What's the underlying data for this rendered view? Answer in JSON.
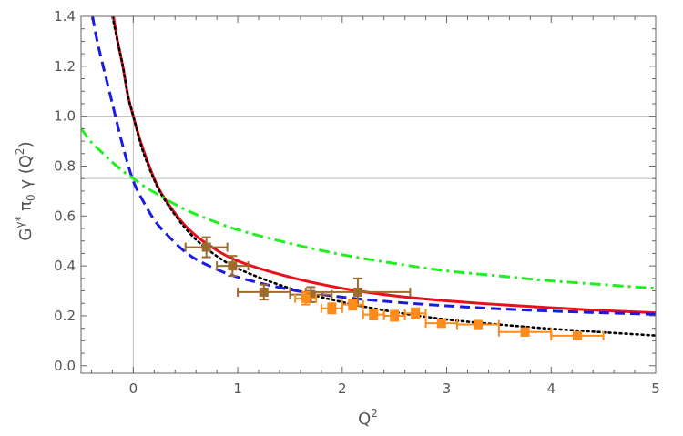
{
  "chart_data": {
    "type": "line",
    "title": "",
    "xlabel": {
      "base": "Q",
      "sup": "2"
    },
    "ylabel": {
      "g": "G",
      "gsup": "γ*",
      "pi": " π",
      "pisub": "0",
      "rest": " γ",
      "arg_open": " (Q",
      "arg_sup": "2",
      "arg_close": ")"
    },
    "xlim": [
      -0.5,
      5
    ],
    "ylim": [
      -0.03,
      1.4
    ],
    "xticks": [
      0,
      1,
      2,
      3,
      4,
      5
    ],
    "yticks": [
      0.0,
      0.2,
      0.4,
      0.6,
      0.8,
      1.0,
      1.2,
      1.4
    ],
    "ytick_labels": [
      "0.0",
      "0.2",
      "0.4",
      "0.6",
      "0.8",
      "1.0",
      "1.2",
      "1.4"
    ],
    "reference_lines": {
      "x": [
        0
      ],
      "y": [
        0.75,
        1.0
      ]
    },
    "grid": false,
    "frame": true,
    "curves": [
      {
        "style": "solid",
        "color": "#e8101a",
        "x": [
          -0.19,
          -0.15,
          -0.1,
          -0.05,
          0,
          0.05,
          0.1,
          0.2,
          0.3,
          0.5,
          0.7,
          1.0,
          1.5,
          2.0,
          2.5,
          3.0,
          3.5,
          4.0,
          4.5,
          5.0
        ],
        "y": [
          1.4,
          1.3,
          1.2,
          1.08,
          1.0,
          0.925,
          0.86,
          0.75,
          0.67,
          0.56,
          0.49,
          0.42,
          0.355,
          0.31,
          0.28,
          0.26,
          0.245,
          0.232,
          0.221,
          0.212
        ]
      },
      {
        "style": "dotted",
        "color": "#000000",
        "x": [
          -0.2,
          -0.15,
          -0.1,
          -0.05,
          0,
          0.05,
          0.1,
          0.2,
          0.3,
          0.5,
          0.7,
          1.0,
          1.5,
          2.0,
          2.5,
          3.0,
          3.5,
          4.0,
          4.5,
          5.0
        ],
        "y": [
          1.4,
          1.3,
          1.2,
          1.08,
          1.0,
          0.92,
          0.85,
          0.745,
          0.665,
          0.55,
          0.47,
          0.39,
          0.31,
          0.255,
          0.215,
          0.185,
          0.165,
          0.148,
          0.134,
          0.121
        ]
      },
      {
        "style": "dashed",
        "color": "#1a1ae0",
        "x": [
          -0.39,
          -0.35,
          -0.3,
          -0.2,
          -0.1,
          0,
          0.1,
          0.2,
          0.3,
          0.5,
          0.7,
          1.0,
          1.5,
          2.0,
          2.5,
          3.0,
          3.5,
          4.0,
          4.5,
          5.0
        ],
        "y": [
          1.4,
          1.31,
          1.22,
          1.05,
          0.88,
          0.74,
          0.655,
          0.585,
          0.535,
          0.455,
          0.405,
          0.355,
          0.305,
          0.275,
          0.255,
          0.24,
          0.228,
          0.219,
          0.212,
          0.206
        ]
      },
      {
        "style": "dashdot",
        "color": "#22ee22",
        "x": [
          -0.5,
          -0.4,
          -0.3,
          -0.2,
          -0.1,
          0,
          0.1,
          0.2,
          0.3,
          0.5,
          0.7,
          1.0,
          1.5,
          2.0,
          2.5,
          3.0,
          3.5,
          4.0,
          4.5,
          5.0
        ],
        "y": [
          0.95,
          0.895,
          0.855,
          0.815,
          0.78,
          0.75,
          0.72,
          0.695,
          0.67,
          0.625,
          0.59,
          0.545,
          0.49,
          0.445,
          0.41,
          0.38,
          0.36,
          0.34,
          0.325,
          0.31
        ]
      }
    ],
    "data_series": [
      {
        "color": "#9c6b2e",
        "marker": "square",
        "points": [
          {
            "x": 0.7,
            "y": 0.475,
            "xerr": 0.2,
            "yerr": 0.04
          },
          {
            "x": 0.95,
            "y": 0.4,
            "xerr": 0.15,
            "yerr": 0.04
          },
          {
            "x": 1.25,
            "y": 0.295,
            "xerr": 0.25,
            "yerr": 0.03
          },
          {
            "x": 1.7,
            "y": 0.285,
            "xerr": 0.2,
            "yerr": 0.03
          },
          {
            "x": 2.15,
            "y": 0.295,
            "xerr": 0.5,
            "yerr": 0.055
          }
        ]
      },
      {
        "color": "#ff8c1a",
        "marker": "square",
        "points": [
          {
            "x": 1.65,
            "y": 0.27,
            "xerr": 0.1,
            "yerr": 0.025
          },
          {
            "x": 1.9,
            "y": 0.23,
            "xerr": 0.1,
            "yerr": 0.02
          },
          {
            "x": 2.1,
            "y": 0.245,
            "xerr": 0.1,
            "yerr": 0.02
          },
          {
            "x": 2.3,
            "y": 0.205,
            "xerr": 0.1,
            "yerr": 0.02
          },
          {
            "x": 2.5,
            "y": 0.2,
            "xerr": 0.1,
            "yerr": 0.02
          },
          {
            "x": 2.7,
            "y": 0.21,
            "xerr": 0.1,
            "yerr": 0.02
          },
          {
            "x": 2.95,
            "y": 0.17,
            "xerr": 0.15,
            "yerr": 0.015
          },
          {
            "x": 3.3,
            "y": 0.165,
            "xerr": 0.2,
            "yerr": 0.015
          },
          {
            "x": 3.75,
            "y": 0.135,
            "xerr": 0.25,
            "yerr": 0.015
          },
          {
            "x": 4.25,
            "y": 0.12,
            "xerr": 0.25,
            "yerr": 0.015
          }
        ]
      }
    ]
  }
}
